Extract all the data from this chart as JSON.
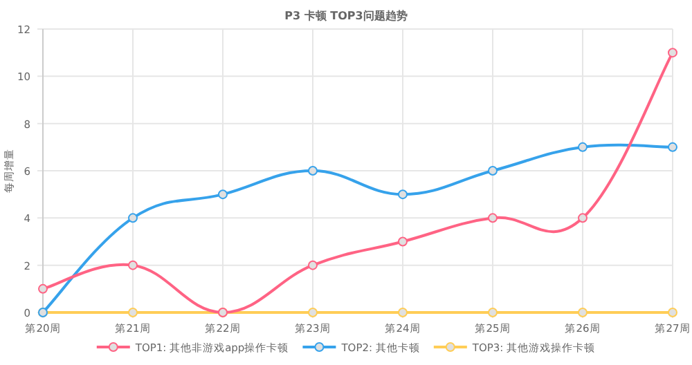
{
  "chart_data": {
    "type": "line",
    "title": "P3 卡顿 TOP3问题趋势",
    "ylabel": "每周增量",
    "categories": [
      "第20周",
      "第21周",
      "第22周",
      "第23周",
      "第24周",
      "第25周",
      "第26周",
      "第27周"
    ],
    "series": [
      {
        "name": "TOP1: 其他非游戏app操作卡顿",
        "color": "#ff6384",
        "values": [
          1,
          2,
          0,
          2,
          3,
          4,
          4,
          11
        ]
      },
      {
        "name": "TOP2: 其他卡顿",
        "color": "#36a2eb",
        "values": [
          0,
          4,
          5,
          6,
          5,
          6,
          7,
          7
        ]
      },
      {
        "name": "TOP3: 其他游戏操作卡顿",
        "color": "#ffcd56",
        "values": [
          0,
          0,
          0,
          0,
          0,
          0,
          0,
          0
        ]
      }
    ],
    "ylim": [
      0,
      12
    ],
    "yticks": [
      0,
      2,
      4,
      6,
      8,
      10,
      12
    ],
    "grid": true,
    "legend": "bottom",
    "marker": "circle"
  }
}
